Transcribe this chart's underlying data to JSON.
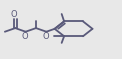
{
  "bg_color": "#e8e8e8",
  "line_color": "#5a5a7a",
  "lw": 1.3,
  "fs": 6.0,
  "xlim": [
    0.0,
    1.0
  ],
  "ylim": [
    0.0,
    1.0
  ],
  "figsize": [
    1.22,
    0.59
  ]
}
